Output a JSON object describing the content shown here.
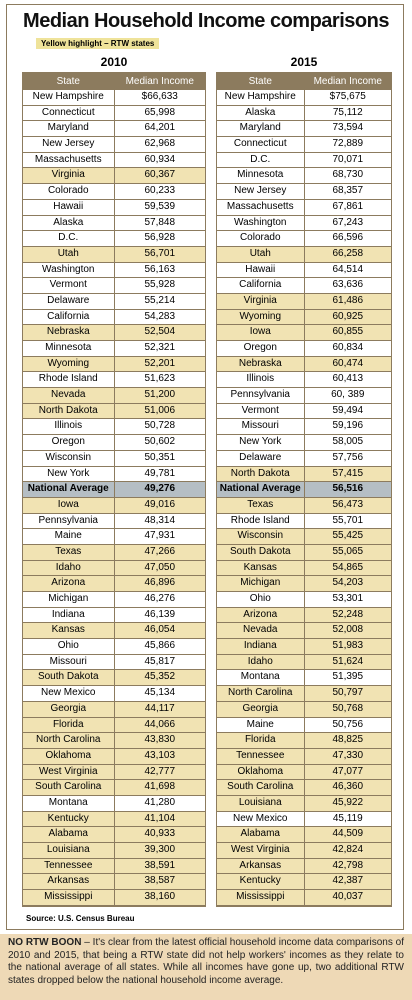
{
  "header": {
    "title": "Median Household Income comparisons",
    "legend": "Yellow highlight – RTW states"
  },
  "tables": [
    {
      "year": "2010",
      "columns": [
        "State",
        "Median Income"
      ],
      "rows": [
        {
          "state": "New Hampshire",
          "income": "$66,633",
          "style": "plain"
        },
        {
          "state": "Connecticut",
          "income": "65,998",
          "style": "plain"
        },
        {
          "state": "Maryland",
          "income": "64,201",
          "style": "plain"
        },
        {
          "state": "New Jersey",
          "income": "62,968",
          "style": "plain"
        },
        {
          "state": "Massachusetts",
          "income": "60,934",
          "style": "plain"
        },
        {
          "state": "Virginia",
          "income": "60,367",
          "style": "rtw"
        },
        {
          "state": "Colorado",
          "income": "60,233",
          "style": "plain"
        },
        {
          "state": "Hawaii",
          "income": "59,539",
          "style": "plain"
        },
        {
          "state": "Alaska",
          "income": "57,848",
          "style": "plain"
        },
        {
          "state": "D.C.",
          "income": "56,928",
          "style": "plain"
        },
        {
          "state": "Utah",
          "income": "56,701",
          "style": "rtw"
        },
        {
          "state": "Washington",
          "income": "56,163",
          "style": "plain"
        },
        {
          "state": "Vermont",
          "income": "55,928",
          "style": "plain"
        },
        {
          "state": "Delaware",
          "income": "55,214",
          "style": "plain"
        },
        {
          "state": "California",
          "income": "54,283",
          "style": "plain"
        },
        {
          "state": "Nebraska",
          "income": "52,504",
          "style": "rtw"
        },
        {
          "state": "Minnesota",
          "income": "52,321",
          "style": "plain"
        },
        {
          "state": "Wyoming",
          "income": "52,201",
          "style": "rtw"
        },
        {
          "state": "Rhode Island",
          "income": "51,623",
          "style": "plain"
        },
        {
          "state": "Nevada",
          "income": "51,200",
          "style": "rtw"
        },
        {
          "state": "North Dakota",
          "income": "51,006",
          "style": "rtw"
        },
        {
          "state": "Illinois",
          "income": "50,728",
          "style": "plain"
        },
        {
          "state": "Oregon",
          "income": "50,602",
          "style": "plain"
        },
        {
          "state": "Wisconsin",
          "income": "50,351",
          "style": "plain"
        },
        {
          "state": "New York",
          "income": "49,781",
          "style": "plain"
        },
        {
          "state": "National Average",
          "income": "49,276",
          "style": "average"
        },
        {
          "state": "Iowa",
          "income": "49,016",
          "style": "rtw"
        },
        {
          "state": "Pennsylvania",
          "income": "48,314",
          "style": "plain"
        },
        {
          "state": "Maine",
          "income": "47,931",
          "style": "plain"
        },
        {
          "state": "Texas",
          "income": "47,266",
          "style": "rtw"
        },
        {
          "state": "Idaho",
          "income": "47,050",
          "style": "rtw"
        },
        {
          "state": "Arizona",
          "income": "46,896",
          "style": "rtw"
        },
        {
          "state": "Michigan",
          "income": "46,276",
          "style": "plain"
        },
        {
          "state": "Indiana",
          "income": "46,139",
          "style": "plain"
        },
        {
          "state": "Kansas",
          "income": "46,054",
          "style": "rtw"
        },
        {
          "state": "Ohio",
          "income": "45,866",
          "style": "plain"
        },
        {
          "state": "Missouri",
          "income": "45,817",
          "style": "plain"
        },
        {
          "state": "South Dakota",
          "income": "45,352",
          "style": "rtw"
        },
        {
          "state": "New Mexico",
          "income": "45,134",
          "style": "plain"
        },
        {
          "state": "Georgia",
          "income": "44,117",
          "style": "rtw"
        },
        {
          "state": "Florida",
          "income": "44,066",
          "style": "rtw"
        },
        {
          "state": "North Carolina",
          "income": "43,830",
          "style": "rtw"
        },
        {
          "state": "Oklahoma",
          "income": "43,103",
          "style": "rtw"
        },
        {
          "state": "West Virginia",
          "income": "42,777",
          "style": "rtw"
        },
        {
          "state": "South Carolina",
          "income": "41,698",
          "style": "rtw"
        },
        {
          "state": "Montana",
          "income": "41,280",
          "style": "plain"
        },
        {
          "state": "Kentucky",
          "income": "41,104",
          "style": "rtw"
        },
        {
          "state": "Alabama",
          "income": "40,933",
          "style": "rtw"
        },
        {
          "state": "Louisiana",
          "income": "39,300",
          "style": "rtw"
        },
        {
          "state": "Tennessee",
          "income": "38,591",
          "style": "rtw"
        },
        {
          "state": "Arkansas",
          "income": "38,587",
          "style": "rtw"
        },
        {
          "state": "Mississippi",
          "income": "38,160",
          "style": "rtw"
        }
      ]
    },
    {
      "year": "2015",
      "columns": [
        "State",
        "Median Income"
      ],
      "rows": [
        {
          "state": "New Hampshire",
          "income": "$75,675",
          "style": "plain"
        },
        {
          "state": "Alaska",
          "income": "75,112",
          "style": "plain"
        },
        {
          "state": "Maryland",
          "income": "73,594",
          "style": "plain"
        },
        {
          "state": "Connecticut",
          "income": "72,889",
          "style": "plain"
        },
        {
          "state": "D.C.",
          "income": "70,071",
          "style": "plain"
        },
        {
          "state": "Minnesota",
          "income": "68,730",
          "style": "plain"
        },
        {
          "state": "New Jersey",
          "income": "68,357",
          "style": "plain"
        },
        {
          "state": "Massachusetts",
          "income": "67,861",
          "style": "plain"
        },
        {
          "state": "Washington",
          "income": "67,243",
          "style": "plain"
        },
        {
          "state": "Colorado",
          "income": "66,596",
          "style": "plain"
        },
        {
          "state": "Utah",
          "income": "66,258",
          "style": "rtw"
        },
        {
          "state": "Hawaii",
          "income": "64,514",
          "style": "plain"
        },
        {
          "state": "California",
          "income": "63,636",
          "style": "plain"
        },
        {
          "state": "Virginia",
          "income": "61,486",
          "style": "rtw"
        },
        {
          "state": "Wyoming",
          "income": "60,925",
          "style": "rtw"
        },
        {
          "state": "Iowa",
          "income": "60,855",
          "style": "rtw"
        },
        {
          "state": "Oregon",
          "income": "60,834",
          "style": "plain"
        },
        {
          "state": "Nebraska",
          "income": "60,474",
          "style": "rtw"
        },
        {
          "state": "Illinois",
          "income": "60,413",
          "style": "plain"
        },
        {
          "state": "Pennsylvania",
          "income": "60, 389",
          "style": "plain"
        },
        {
          "state": "Vermont",
          "income": "59,494",
          "style": "plain"
        },
        {
          "state": "Missouri",
          "income": "59,196",
          "style": "plain"
        },
        {
          "state": "New York",
          "income": "58,005",
          "style": "plain"
        },
        {
          "state": "Delaware",
          "income": "57,756",
          "style": "plain"
        },
        {
          "state": "North Dakota",
          "income": "57,415",
          "style": "rtw"
        },
        {
          "state": "National Average",
          "income": "56,516",
          "style": "average"
        },
        {
          "state": "Texas",
          "income": "56,473",
          "style": "rtw"
        },
        {
          "state": "Rhode Island",
          "income": "55,701",
          "style": "plain"
        },
        {
          "state": "Wisconsin",
          "income": "55,425",
          "style": "rtw"
        },
        {
          "state": "South Dakota",
          "income": "55,065",
          "style": "rtw"
        },
        {
          "state": "Kansas",
          "income": "54,865",
          "style": "rtw"
        },
        {
          "state": "Michigan",
          "income": "54,203",
          "style": "rtw"
        },
        {
          "state": "Ohio",
          "income": "53,301",
          "style": "plain"
        },
        {
          "state": "Arizona",
          "income": "52,248",
          "style": "rtw"
        },
        {
          "state": "Nevada",
          "income": "52,008",
          "style": "rtw"
        },
        {
          "state": "Indiana",
          "income": "51,983",
          "style": "rtw"
        },
        {
          "state": "Idaho",
          "income": "51,624",
          "style": "rtw"
        },
        {
          "state": "Montana",
          "income": "51,395",
          "style": "plain"
        },
        {
          "state": "North Carolina",
          "income": "50,797",
          "style": "rtw"
        },
        {
          "state": "Georgia",
          "income": "50,768",
          "style": "rtw"
        },
        {
          "state": "Maine",
          "income": "50,756",
          "style": "plain"
        },
        {
          "state": "Florida",
          "income": "48,825",
          "style": "rtw"
        },
        {
          "state": "Tennessee",
          "income": "47,330",
          "style": "rtw"
        },
        {
          "state": "Oklahoma",
          "income": "47,077",
          "style": "rtw"
        },
        {
          "state": "South Carolina",
          "income": "46,360",
          "style": "rtw"
        },
        {
          "state": "Louisiana",
          "income": "45,922",
          "style": "rtw"
        },
        {
          "state": "New Mexico",
          "income": "45,119",
          "style": "plain"
        },
        {
          "state": "Alabama",
          "income": "44,509",
          "style": "rtw"
        },
        {
          "state": "West Virginia",
          "income": "42,824",
          "style": "rtw"
        },
        {
          "state": "Arkansas",
          "income": "42,798",
          "style": "rtw"
        },
        {
          "state": "Kentucky",
          "income": "42,387",
          "style": "rtw"
        },
        {
          "state": "Mississippi",
          "income": "40,037",
          "style": "rtw"
        }
      ]
    }
  ],
  "source": "Source: U.S. Census Bureau",
  "note": {
    "lead": "NO RTW BOON",
    "text": " – It's clear from the latest official household income data comparisons of 2010 and 2015, that being a RTW state did not help workers' incomes as they relate to the national average of all states. While all incomes have gone up, two additional RTW states dropped below the national household income average."
  }
}
